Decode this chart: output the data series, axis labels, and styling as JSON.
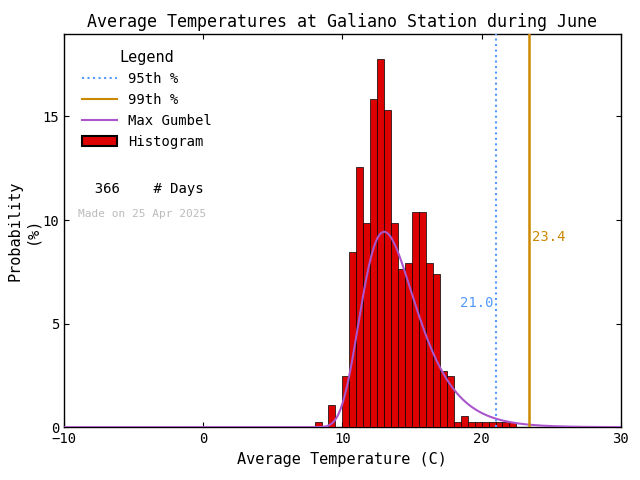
{
  "title": "Average Temperatures at Galiano Station during June",
  "xlabel": "Average Temperature (C)",
  "ylabel": "Probability\n(%)",
  "xlim": [
    -10,
    30
  ],
  "ylim": [
    0,
    19
  ],
  "xticks": [
    -10,
    0,
    10,
    20,
    30
  ],
  "yticks": [
    0,
    5,
    10,
    15
  ],
  "n_days": 366,
  "percentile_95": 21.0,
  "percentile_99": 23.4,
  "percentile_95_color": "#5599ff",
  "percentile_99_color": "#cc8800",
  "gumbel_color": "#aa55cc",
  "hist_color": "#dd0000",
  "hist_edgecolor": "#000000",
  "date_label": "Made on 25 Apr 2025",
  "date_label_color": "#bbbbbb",
  "bin_edges": [
    8.0,
    8.5,
    9.0,
    9.5,
    10.0,
    10.5,
    11.0,
    11.5,
    12.0,
    12.5,
    13.0,
    13.5,
    14.0,
    14.5,
    15.0,
    15.5,
    16.0,
    16.5,
    17.0,
    17.5,
    18.0,
    18.5,
    19.0,
    19.5,
    20.0,
    20.5,
    21.0,
    21.5,
    22.0,
    22.5,
    23.0,
    23.5,
    24.0,
    24.5
  ],
  "bin_probs": [
    0.27,
    0.0,
    1.09,
    0.0,
    2.46,
    8.47,
    12.57,
    9.84,
    15.85,
    17.76,
    15.3,
    9.84,
    7.65,
    7.93,
    10.38,
    10.38,
    7.93,
    7.38,
    2.73,
    2.46,
    0.27,
    0.55,
    0.27,
    0.27,
    0.27,
    0.27,
    0.27,
    0.27,
    0.27,
    0.0,
    0.0,
    0.0,
    0.0,
    0.0
  ],
  "gumbel_mu": 13.0,
  "gumbel_beta": 1.95,
  "gumbel_scale": 100.0,
  "background_color": "#ffffff",
  "legend_fontsize": 10,
  "title_fontsize": 12,
  "axis_fontsize": 11,
  "tick_fontsize": 10
}
